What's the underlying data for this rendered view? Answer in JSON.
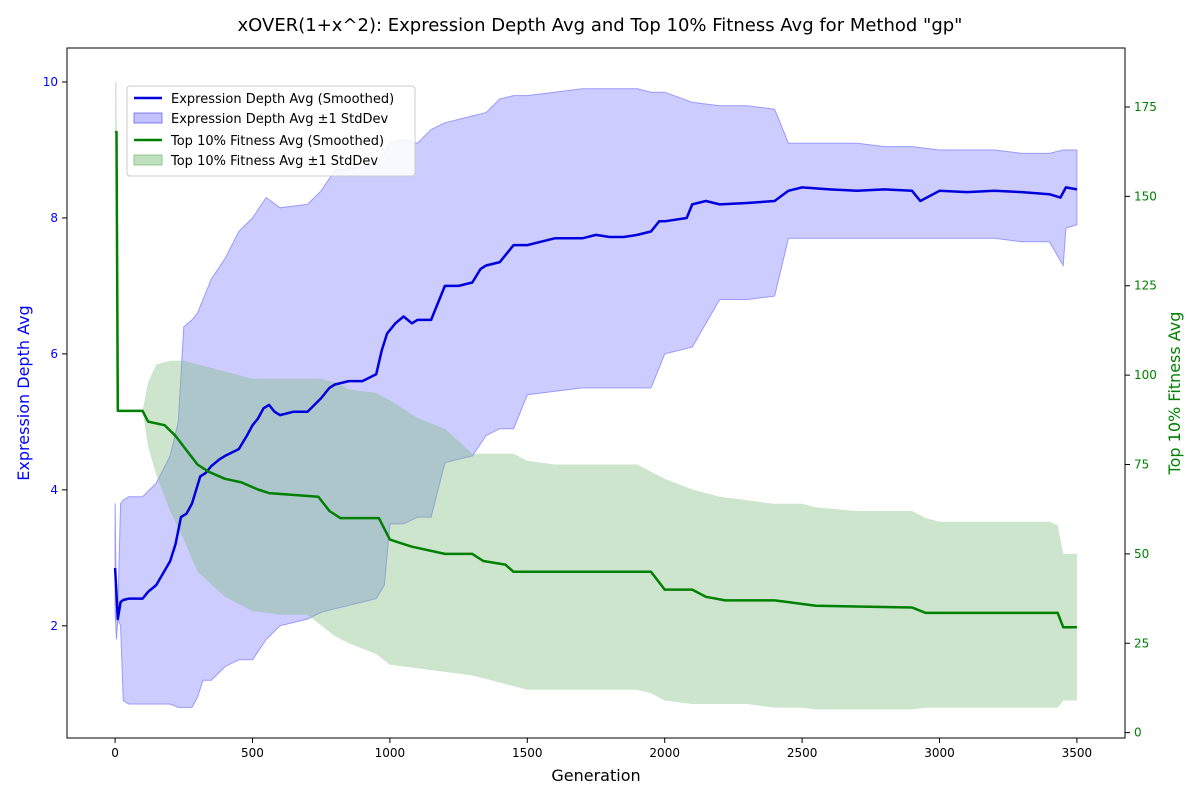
{
  "chart_data": {
    "type": "line",
    "title": "xOVER(1+x^2): Expression Depth Avg and Top 10% Fitness Avg for Method \"gp\"",
    "xlabel": "Generation",
    "ylabel_left": "Expression Depth Avg",
    "ylabel_right": "Top 10% Fitness Avg",
    "xlim": [
      -175,
      3675
    ],
    "ylim_left": [
      0.35,
      10.5
    ],
    "ylim_right": [
      -1.5,
      191.5
    ],
    "xticks": [
      0,
      500,
      1000,
      1500,
      2000,
      2500,
      3000,
      3500
    ],
    "yticks_left": [
      2,
      4,
      6,
      8,
      10
    ],
    "yticks_right": [
      0,
      25,
      50,
      75,
      100,
      125,
      150,
      175
    ],
    "grid": false,
    "legend_position": "upper-left",
    "colors": {
      "depth": "#0000dd",
      "depth_band": "#9999ff",
      "fitness": "#008000",
      "fitness_band": "#7fbf7f",
      "left_axis_text": "#0000ff",
      "right_axis_text": "#008000"
    },
    "series": [
      {
        "name": "Expression Depth Avg (Smoothed)",
        "axis": "left",
        "x": [
          0,
          10,
          20,
          30,
          50,
          100,
          120,
          150,
          200,
          220,
          240,
          260,
          280,
          310,
          330,
          350,
          380,
          400,
          450,
          480,
          500,
          520,
          540,
          560,
          580,
          600,
          650,
          700,
          750,
          780,
          800,
          850,
          900,
          950,
          970,
          990,
          1020,
          1050,
          1080,
          1100,
          1150,
          1200,
          1250,
          1300,
          1330,
          1350,
          1400,
          1450,
          1500,
          1550,
          1600,
          1650,
          1700,
          1750,
          1800,
          1850,
          1900,
          1950,
          1980,
          2000,
          2080,
          2100,
          2150,
          2200,
          2300,
          2400,
          2450,
          2500,
          2600,
          2700,
          2800,
          2900,
          2930,
          3000,
          3100,
          3200,
          3300,
          3400,
          3440,
          3460,
          3500
        ],
        "y": [
          2.85,
          2.1,
          2.35,
          2.38,
          2.4,
          2.4,
          2.5,
          2.6,
          2.95,
          3.2,
          3.6,
          3.65,
          3.8,
          4.2,
          4.25,
          4.35,
          4.45,
          4.5,
          4.6,
          4.8,
          4.95,
          5.05,
          5.2,
          5.25,
          5.15,
          5.1,
          5.15,
          5.15,
          5.35,
          5.5,
          5.55,
          5.6,
          5.6,
          5.7,
          6.05,
          6.3,
          6.45,
          6.55,
          6.45,
          6.5,
          6.5,
          7.0,
          7.0,
          7.05,
          7.25,
          7.3,
          7.35,
          7.6,
          7.6,
          7.65,
          7.7,
          7.7,
          7.7,
          7.75,
          7.72,
          7.72,
          7.75,
          7.8,
          7.95,
          7.95,
          8.0,
          8.2,
          8.25,
          8.2,
          8.22,
          8.25,
          8.4,
          8.45,
          8.42,
          8.4,
          8.42,
          8.4,
          8.25,
          8.4,
          8.38,
          8.4,
          8.38,
          8.35,
          8.3,
          8.45,
          8.42
        ]
      },
      {
        "name": "Expression Depth Avg ±1 StdDev",
        "axis": "left",
        "type": "band",
        "x": [
          0,
          5,
          10,
          20,
          30,
          50,
          100,
          150,
          200,
          230,
          250,
          280,
          300,
          320,
          350,
          400,
          450,
          500,
          550,
          600,
          700,
          750,
          800,
          900,
          950,
          980,
          1000,
          1050,
          1100,
          1150,
          1200,
          1300,
          1350,
          1400,
          1450,
          1500,
          1600,
          1700,
          1800,
          1900,
          1950,
          2000,
          2100,
          2200,
          2300,
          2400,
          2450,
          2500,
          2600,
          2700,
          2800,
          2900,
          3000,
          3100,
          3200,
          3300,
          3400,
          3450,
          3460,
          3500
        ],
        "upper": [
          3.8,
          2.2,
          2.2,
          3.8,
          3.85,
          3.9,
          3.9,
          4.1,
          4.5,
          5.0,
          6.4,
          6.5,
          6.6,
          6.8,
          7.1,
          7.4,
          7.8,
          8.0,
          8.3,
          8.15,
          8.2,
          8.4,
          8.7,
          8.75,
          8.8,
          8.95,
          9.1,
          9.15,
          9.1,
          9.3,
          9.4,
          9.5,
          9.55,
          9.75,
          9.8,
          9.8,
          9.85,
          9.9,
          9.9,
          9.9,
          9.85,
          9.85,
          9.7,
          9.65,
          9.65,
          9.6,
          9.1,
          9.1,
          9.1,
          9.1,
          9.05,
          9.05,
          9.0,
          9.0,
          9.0,
          8.95,
          8.95,
          9.0,
          9.0,
          9.0
        ],
        "lower": [
          2.2,
          1.8,
          2.1,
          2.0,
          0.9,
          0.85,
          0.85,
          0.85,
          0.85,
          0.8,
          0.8,
          0.8,
          0.95,
          1.2,
          1.2,
          1.4,
          1.5,
          1.5,
          1.8,
          2.0,
          2.1,
          2.2,
          2.25,
          2.35,
          2.4,
          2.6,
          3.5,
          3.5,
          3.6,
          3.6,
          4.4,
          4.5,
          4.8,
          4.9,
          4.9,
          5.4,
          5.45,
          5.5,
          5.5,
          5.5,
          5.5,
          6.0,
          6.1,
          6.8,
          6.8,
          6.85,
          7.7,
          7.7,
          7.7,
          7.7,
          7.7,
          7.7,
          7.7,
          7.7,
          7.7,
          7.65,
          7.65,
          7.3,
          7.85,
          7.9
        ]
      },
      {
        "name": "Top 10% Fitness Avg (Smoothed)",
        "axis": "right",
        "x": [
          0,
          5,
          10,
          100,
          120,
          180,
          220,
          260,
          300,
          340,
          400,
          460,
          520,
          560,
          740,
          780,
          820,
          960,
          1000,
          1040,
          1080,
          1200,
          1300,
          1340,
          1420,
          1450,
          1500,
          1750,
          1950,
          1970,
          2000,
          2100,
          2150,
          2220,
          2400,
          2450,
          2550,
          2900,
          2950,
          3430,
          3450,
          3500
        ],
        "y": [
          168,
          168,
          90,
          90,
          87,
          86,
          83,
          79,
          75,
          73,
          71,
          70,
          68,
          67,
          66,
          62,
          60,
          60,
          54,
          53,
          52,
          50,
          50,
          48,
          47,
          45,
          45,
          45,
          45,
          43,
          40,
          40,
          38,
          37,
          37,
          36.5,
          35.5,
          35,
          33.5,
          33.5,
          29.5,
          29.5
        ]
      },
      {
        "name": "Top 10% Fitness Avg ±1 StdDev",
        "axis": "right",
        "type": "band",
        "x": [
          0,
          5,
          10,
          100,
          120,
          150,
          200,
          250,
          300,
          400,
          500,
          600,
          700,
          750,
          800,
          850,
          950,
          1000,
          1100,
          1200,
          1300,
          1350,
          1450,
          1500,
          1600,
          1900,
          1950,
          2000,
          2100,
          2200,
          2300,
          2400,
          2500,
          2550,
          2700,
          2900,
          2950,
          3000,
          3300,
          3400,
          3430,
          3450,
          3500
        ],
        "upper": [
          182,
          182,
          90,
          90,
          98,
          103,
          104,
          104,
          103,
          101,
          99,
          99,
          99,
          99,
          98,
          96,
          95,
          93,
          88,
          85,
          78,
          78,
          78,
          76,
          75,
          75,
          73,
          71,
          68,
          66,
          65,
          64,
          64,
          63,
          62,
          62,
          60,
          59,
          59,
          59,
          58,
          50,
          50
        ],
        "lower": [
          168,
          168,
          90,
          90,
          80,
          72,
          62,
          54,
          45,
          38,
          34,
          33,
          33,
          30,
          27,
          25,
          22,
          19,
          18,
          17,
          16,
          15,
          13,
          12,
          12,
          12,
          11,
          9,
          8,
          8,
          8,
          7,
          7,
          6.5,
          6.5,
          6.5,
          7,
          7,
          7,
          7,
          7,
          9,
          9
        ]
      }
    ]
  }
}
